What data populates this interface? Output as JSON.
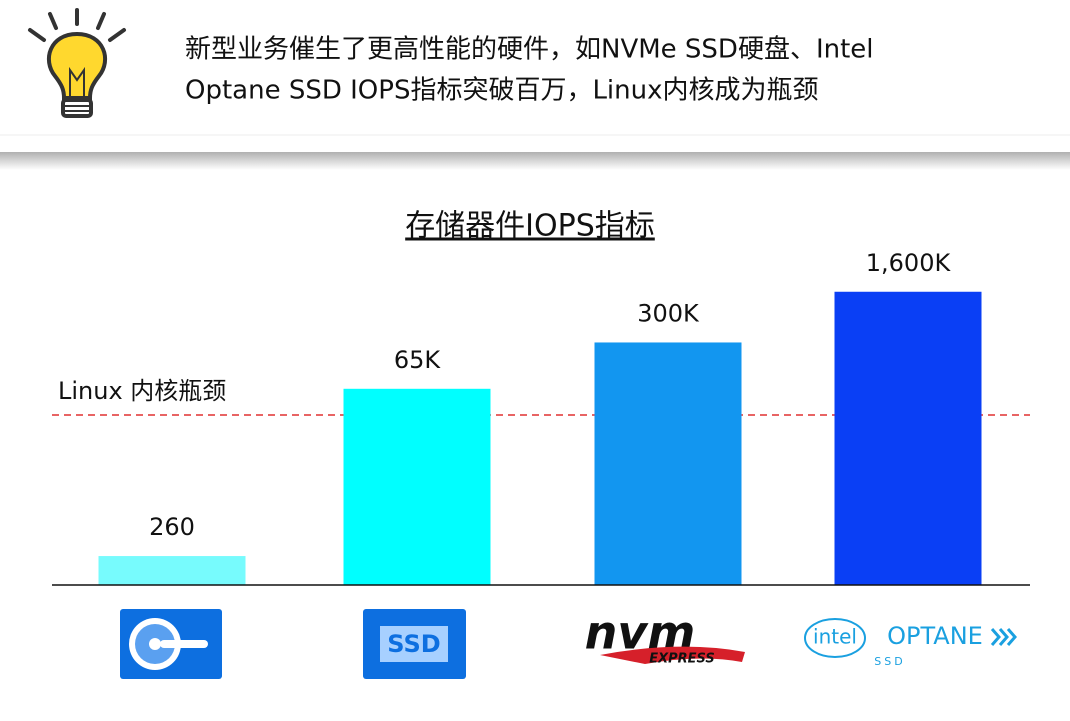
{
  "header": {
    "text_line1": "新型业务催生了更高性能的硬件，如NVMe SSD硬盘、Intel",
    "text_line2": "Optane SSD IOPS指标突破百万，Linux内核成为瓶颈"
  },
  "chart_data": {
    "type": "bar",
    "title": "存储器件IOPS指标",
    "categories": [
      null,
      null,
      null,
      null
    ],
    "values": [
      260,
      65000,
      300000,
      1600000
    ],
    "value_labels": [
      "260",
      "65K",
      "300K",
      "1,600K"
    ],
    "colors": [
      "#77fbfd",
      "#00ffff",
      "#1296f0",
      "#0a3ff5"
    ],
    "log_scale": true,
    "ylim": [
      100,
      2000000
    ],
    "annotation": "Linux 内核瓶颈"
  },
  "logos": {
    "ssd": "SSD",
    "nvm": "nvm",
    "express": "EXPRESS",
    "intel": "intel",
    "optane": "OPTANE",
    "optane_ssd": "SSD"
  }
}
